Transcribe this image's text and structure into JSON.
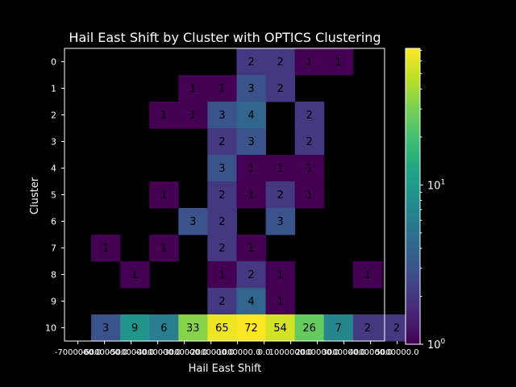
{
  "chart_data": {
    "type": "heatmap",
    "title": "Hail East Shift by Cluster with OPTICS Clustering",
    "xlabel": "Hail East Shift",
    "ylabel": "Cluster",
    "x_tick_labels": [
      "-7000000.0",
      "-6000000.0",
      "-5000000.0",
      "-4000000.0",
      "-3000000.0",
      "-2000000.0",
      "-1000000.0",
      "0.0",
      "1000000.0",
      "2000000.0",
      "3000000.0",
      "4000000.0",
      "5000000.0"
    ],
    "rows": [
      "0",
      "1",
      "2",
      "3",
      "4",
      "5",
      "6",
      "7",
      "8",
      "9",
      "10"
    ],
    "n_columns": 11,
    "colormap": "viridis",
    "color_scale": "log",
    "color_range": [
      1,
      72
    ],
    "colorbar_ticks": [
      "10^0",
      "10^1"
    ],
    "cells": [
      [
        null,
        null,
        null,
        null,
        null,
        2,
        2,
        1,
        1,
        null,
        null
      ],
      [
        null,
        null,
        null,
        1,
        1,
        3,
        2,
        null,
        null,
        null,
        null
      ],
      [
        null,
        null,
        1,
        1,
        3,
        4,
        null,
        2,
        null,
        null,
        null
      ],
      [
        null,
        null,
        null,
        null,
        2,
        3,
        null,
        2,
        null,
        null,
        null
      ],
      [
        null,
        null,
        null,
        null,
        3,
        1,
        1,
        1,
        null,
        null,
        null
      ],
      [
        null,
        null,
        1,
        null,
        2,
        1,
        2,
        1,
        null,
        null,
        null
      ],
      [
        null,
        null,
        null,
        3,
        2,
        null,
        3,
        null,
        null,
        null,
        null
      ],
      [
        1,
        null,
        1,
        null,
        2,
        1,
        null,
        null,
        null,
        null,
        null
      ],
      [
        null,
        1,
        null,
        null,
        1,
        2,
        1,
        null,
        null,
        1,
        null
      ],
      [
        null,
        null,
        null,
        null,
        2,
        4,
        1,
        null,
        null,
        null,
        null
      ],
      [
        3,
        9,
        6,
        33,
        65,
        72,
        54,
        26,
        7,
        2,
        2
      ]
    ]
  }
}
